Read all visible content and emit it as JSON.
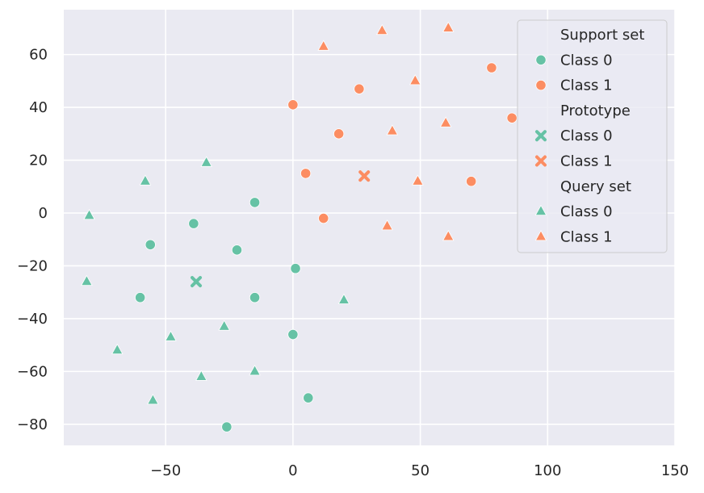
{
  "chart_data": {
    "type": "scatter",
    "xlim": [
      -90,
      150
    ],
    "ylim": [
      -88,
      77
    ],
    "x_ticks": [
      -50,
      0,
      50,
      100,
      150
    ],
    "y_ticks": [
      -80,
      -60,
      -40,
      -20,
      0,
      20,
      40,
      60
    ],
    "x_tick_labels": [
      "−50",
      "0",
      "50",
      "100",
      "150"
    ],
    "y_tick_labels": [
      "−80",
      "−60",
      "−40",
      "−20",
      "0",
      "20",
      "40",
      "60"
    ],
    "grid": true,
    "background": "#eaeaf2",
    "legend": {
      "placement": "top-right",
      "groups": [
        {
          "title": "Support set",
          "entries": [
            {
              "label": "Class 0",
              "marker": "circle",
              "color": "#66c2a5"
            },
            {
              "label": "Class 1",
              "marker": "circle",
              "color": "#fc8d62"
            }
          ]
        },
        {
          "title": "Prototype",
          "entries": [
            {
              "label": "Class 0",
              "marker": "x",
              "color": "#66c2a5"
            },
            {
              "label": "Class 1",
              "marker": "x",
              "color": "#fc8d62"
            }
          ]
        },
        {
          "title": "Query set",
          "entries": [
            {
              "label": "Class 0",
              "marker": "triangle",
              "color": "#66c2a5"
            },
            {
              "label": "Class 1",
              "marker": "triangle",
              "color": "#fc8d62"
            }
          ]
        }
      ]
    },
    "series": [
      {
        "set": "Support set",
        "class_label": "Class 0",
        "marker": "circle",
        "color": "#66c2a5",
        "points": [
          [
            -15,
            4
          ],
          [
            -39,
            -4
          ],
          [
            -56,
            -12
          ],
          [
            -22,
            -14
          ],
          [
            1,
            -21
          ],
          [
            -60,
            -32
          ],
          [
            -15,
            -32
          ],
          [
            0,
            -46
          ],
          [
            6,
            -70
          ],
          [
            -26,
            -81
          ]
        ]
      },
      {
        "set": "Support set",
        "class_label": "Class 1",
        "marker": "circle",
        "color": "#fc8d62",
        "points": [
          [
            0,
            41
          ],
          [
            26,
            47
          ],
          [
            78,
            55
          ],
          [
            86,
            36
          ],
          [
            18,
            30
          ],
          [
            5,
            15
          ],
          [
            70,
            12
          ],
          [
            12,
            -2
          ]
        ]
      },
      {
        "set": "Prototype",
        "class_label": "Class 0",
        "marker": "x",
        "color": "#66c2a5",
        "points": [
          [
            -38,
            -26
          ]
        ]
      },
      {
        "set": "Prototype",
        "class_label": "Class 1",
        "marker": "x",
        "color": "#fc8d62",
        "points": [
          [
            28,
            14
          ]
        ]
      },
      {
        "set": "Query set",
        "class_label": "Class 0",
        "marker": "triangle",
        "color": "#66c2a5",
        "points": [
          [
            -34,
            19
          ],
          [
            -58,
            12
          ],
          [
            -80,
            -1
          ],
          [
            -81,
            -26
          ],
          [
            20,
            -33
          ],
          [
            -48,
            -47
          ],
          [
            -27,
            -43
          ],
          [
            -69,
            -52
          ],
          [
            -36,
            -62
          ],
          [
            -15,
            -60
          ],
          [
            -55,
            -71
          ]
        ]
      },
      {
        "set": "Query set",
        "class_label": "Class 1",
        "marker": "triangle",
        "color": "#fc8d62",
        "points": [
          [
            12,
            63
          ],
          [
            35,
            69
          ],
          [
            61,
            70
          ],
          [
            48,
            50
          ],
          [
            39,
            31
          ],
          [
            60,
            34
          ],
          [
            49,
            12
          ],
          [
            37,
            -5
          ],
          [
            61,
            -9
          ]
        ]
      }
    ]
  }
}
